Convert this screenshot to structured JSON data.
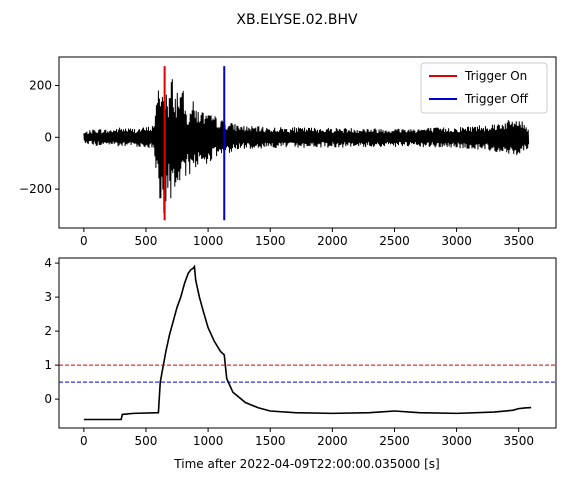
{
  "figure": {
    "title": "XB.ELYSE.02.BHV"
  },
  "chart_data": [
    {
      "type": "line",
      "panel": "waveform",
      "title": "XB.ELYSE.02.BHV",
      "xlabel": "",
      "ylabel": "",
      "xlim": [
        -200,
        3800
      ],
      "ylim": [
        -350,
        310
      ],
      "xticks": [
        0,
        500,
        1000,
        1500,
        2000,
        2500,
        3000,
        3500
      ],
      "yticks": [
        200,
        0,
        -200
      ],
      "ytick_labels": [
        "200",
        "0",
        "−200"
      ],
      "grid": false,
      "legend": {
        "position": "top-right",
        "entries": [
          {
            "label": "Trigger On",
            "color": "#dd0000"
          },
          {
            "label": "Trigger Off",
            "color": "#0000cc"
          }
        ]
      },
      "series": [
        {
          "role": "seismogram",
          "color": "#000000",
          "envelope": {
            "x": [
              0,
              100,
              200,
              300,
              400,
              500,
              560,
              590,
              610,
              625,
              640,
              660,
              680,
              700,
              720,
              740,
              760,
              780,
              800,
              820,
              840,
              860,
              880,
              900,
              950,
              1000,
              1050,
              1100,
              1150,
              1200,
              1300,
              1500,
              2000,
              2500,
              3000,
              3300,
              3400,
              3500,
              3580
            ],
            "upper": [
              20,
              35,
              30,
              40,
              35,
              40,
              50,
              150,
              250,
              210,
              185,
              230,
              100,
              250,
              230,
              155,
              215,
              195,
              180,
              110,
              95,
              160,
              140,
              120,
              105,
              90,
              85,
              70,
              62,
              55,
              45,
              40,
              38,
              35,
              40,
              55,
              65,
              75,
              40
            ],
            "lower": [
              -20,
              -35,
              -30,
              -40,
              -35,
              -40,
              -50,
              -160,
              -290,
              -240,
              -300,
              -320,
              -200,
              -260,
              -210,
              -225,
              -240,
              -195,
              -170,
              -215,
              -125,
              -155,
              -115,
              -130,
              -110,
              -100,
              -85,
              -70,
              -65,
              -55,
              -45,
              -42,
              -40,
              -38,
              -42,
              -55,
              -65,
              -70,
              -40
            ]
          }
        },
        {
          "role": "trigger-on",
          "name": "Trigger On",
          "color": "#dd0000",
          "x": [
            650,
            650
          ],
          "y": [
            -320,
            275
          ]
        },
        {
          "role": "trigger-off",
          "name": "Trigger Off",
          "color": "#0000cc",
          "x": [
            1130,
            1130
          ],
          "y": [
            -320,
            275
          ]
        }
      ]
    },
    {
      "type": "line",
      "panel": "characteristic-function",
      "title": "",
      "xlabel": "Time after 2022-04-09T22:00:00.035000 [s]",
      "ylabel": "",
      "xlim": [
        -200,
        3800
      ],
      "ylim": [
        -0.85,
        4.15
      ],
      "xticks": [
        0,
        500,
        1000,
        1500,
        2000,
        2500,
        3000,
        3500
      ],
      "yticks": [
        4,
        3,
        2,
        1,
        0
      ],
      "grid": false,
      "series": [
        {
          "role": "characteristic-function",
          "color": "#000000",
          "x": [
            0,
            300,
            310,
            400,
            600,
            615,
            630,
            660,
            690,
            720,
            750,
            780,
            810,
            840,
            860,
            880,
            890,
            900,
            930,
            960,
            1000,
            1050,
            1100,
            1130,
            1150,
            1200,
            1300,
            1400,
            1500,
            1700,
            2000,
            2300,
            2500,
            2700,
            3000,
            3300,
            3450,
            3500,
            3550,
            3600
          ],
          "y": [
            -0.6,
            -0.6,
            -0.45,
            -0.42,
            -0.4,
            0.5,
            0.8,
            1.4,
            1.9,
            2.3,
            2.7,
            3.0,
            3.4,
            3.7,
            3.8,
            3.85,
            3.9,
            3.5,
            3.0,
            2.6,
            2.1,
            1.7,
            1.4,
            1.3,
            0.6,
            0.2,
            -0.1,
            -0.25,
            -0.35,
            -0.4,
            -0.42,
            -0.4,
            -0.35,
            -0.4,
            -0.42,
            -0.38,
            -0.33,
            -0.28,
            -0.26,
            -0.25
          ]
        },
        {
          "role": "threshold-on",
          "color": "#dd0000",
          "dashed": true,
          "y_const": 1.0
        },
        {
          "role": "threshold-off",
          "color": "#0000cc",
          "dashed": true,
          "y_const": 0.5
        }
      ]
    }
  ]
}
